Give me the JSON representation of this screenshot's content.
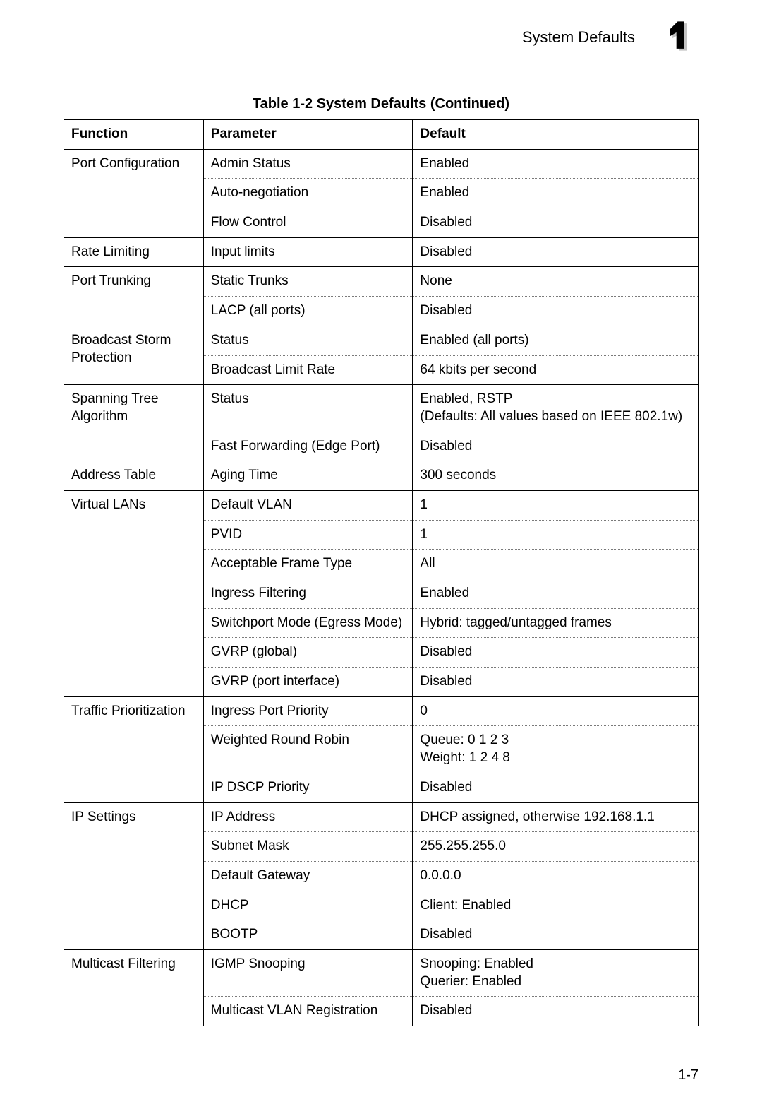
{
  "header": {
    "title": "System Defaults",
    "chapter_number": "1"
  },
  "caption": "Table 1-2   System Defaults  (Continued)",
  "columns": [
    "Function",
    "Parameter",
    "Default"
  ],
  "column_widths_percent": [
    22,
    33,
    45
  ],
  "colors": {
    "background": "#ffffff",
    "text": "#000000",
    "solid_border": "#000000",
    "dotted_border": "#7a7a7a",
    "chapter_shadow": "#c3c3c3"
  },
  "fonts": {
    "body_pt": 14,
    "caption_pt": 15,
    "header_title_pt": 16,
    "caption_weight": "bold",
    "header_weight": "bold",
    "family": "Arial"
  },
  "groups": [
    {
      "function": "Port Configuration",
      "rows": [
        {
          "parameter": "Admin Status",
          "default": "Enabled"
        },
        {
          "parameter": "Auto-negotiation",
          "default": "Enabled"
        },
        {
          "parameter": "Flow Control",
          "default": "Disabled"
        }
      ]
    },
    {
      "function": "Rate Limiting",
      "rows": [
        {
          "parameter": "Input limits",
          "default": "Disabled"
        }
      ]
    },
    {
      "function": "Port Trunking",
      "rows": [
        {
          "parameter": "Static Trunks",
          "default": "None"
        },
        {
          "parameter": "LACP (all ports)",
          "default": "Disabled"
        }
      ]
    },
    {
      "function": "Broadcast Storm Protection",
      "rows": [
        {
          "parameter": "Status",
          "default": "Enabled (all ports)"
        },
        {
          "parameter": "Broadcast Limit Rate",
          "default": "64 kbits per second"
        }
      ]
    },
    {
      "function": "Spanning Tree Algorithm",
      "rows": [
        {
          "parameter": "Status",
          "default": "Enabled, RSTP\n(Defaults: All values based on IEEE 802.1w)"
        },
        {
          "parameter": "Fast Forwarding (Edge Port)",
          "default": "Disabled"
        }
      ]
    },
    {
      "function": "Address Table",
      "rows": [
        {
          "parameter": "Aging Time",
          "default": "300 seconds"
        }
      ]
    },
    {
      "function": "Virtual LANs",
      "rows": [
        {
          "parameter": "Default VLAN",
          "default": "1"
        },
        {
          "parameter": "PVID",
          "default": "1"
        },
        {
          "parameter": "Acceptable Frame Type",
          "default": "All"
        },
        {
          "parameter": "Ingress Filtering",
          "default": "Enabled"
        },
        {
          "parameter": "Switchport Mode (Egress Mode)",
          "default": "Hybrid: tagged/untagged frames"
        },
        {
          "parameter": "GVRP (global)",
          "default": "Disabled"
        },
        {
          "parameter": "GVRP (port interface)",
          "default": "Disabled"
        }
      ]
    },
    {
      "function": "Traffic Prioritization",
      "rows": [
        {
          "parameter": "Ingress Port Priority",
          "default": "0"
        },
        {
          "parameter": "Weighted Round Robin",
          "default": "Queue:  0 1 2 3\nWeight:  1 2 4  8"
        },
        {
          "parameter": "IP DSCP Priority",
          "default": "Disabled"
        }
      ]
    },
    {
      "function": "IP Settings",
      "rows": [
        {
          "parameter": "IP Address",
          "default": "DHCP assigned, otherwise 192.168.1.1"
        },
        {
          "parameter": "Subnet Mask",
          "default": "255.255.255.0"
        },
        {
          "parameter": "Default Gateway",
          "default": "0.0.0.0"
        },
        {
          "parameter": "DHCP",
          "default": "Client: Enabled"
        },
        {
          "parameter": "BOOTP",
          "default": "Disabled"
        }
      ]
    },
    {
      "function": "Multicast Filtering",
      "rows": [
        {
          "parameter": "IGMP Snooping",
          "default": "Snooping: Enabled\nQuerier: Enabled"
        },
        {
          "parameter": "Multicast VLAN Registration",
          "default": "Disabled"
        }
      ]
    }
  ],
  "page_number": "1-7"
}
